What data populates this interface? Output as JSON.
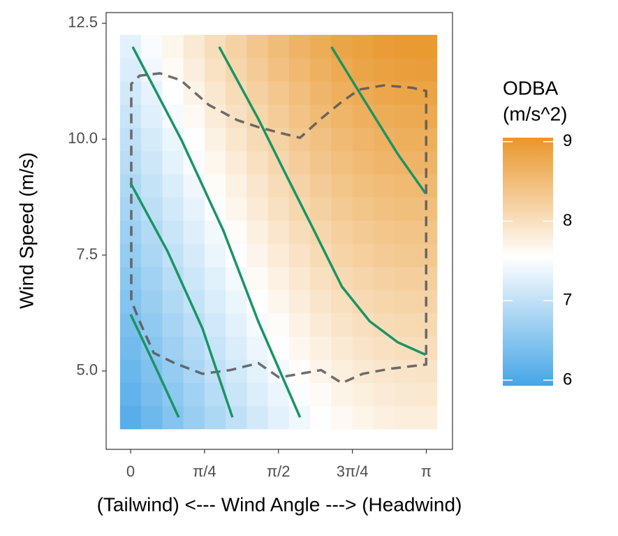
{
  "chart_data": {
    "type": "heatmap",
    "x_label": "(Tailwind)  <---  Wind Angle  --->  (Headwind)",
    "y_label": "Wind Speed (m/s)",
    "legend_title": [
      "ODBA",
      "(m/s^2)"
    ],
    "xlim": [
      -0.26,
      3.42
    ],
    "ylim": [
      3.31,
      12.73
    ],
    "xticks": [
      0,
      {
        "value": 0.7854,
        "label": "π/4"
      },
      {
        "value": 1.5708,
        "label": "π/2"
      },
      {
        "value": 2.3562,
        "label": "3π/4"
      },
      {
        "value": 3.1416,
        "label": "π"
      }
    ],
    "yticks": [
      {
        "value": 5,
        "label": "5.0"
      },
      7.5,
      {
        "value": 10,
        "label": "10.0"
      },
      12.5
    ],
    "x": [
      0,
      0.2244,
      0.4488,
      0.6732,
      0.8976,
      1.122,
      1.3464,
      1.5708,
      1.7952,
      2.0196,
      2.244,
      2.4684,
      2.6928,
      2.9172,
      3.1416
    ],
    "y": [
      4,
      4.5,
      5,
      5.5,
      6,
      6.5,
      7,
      7.5,
      8,
      8.5,
      9,
      9.5,
      10,
      10.5,
      11,
      11.5,
      12
    ],
    "z": [
      [
        6.1,
        6.29,
        6.48,
        6.66,
        6.84,
        7.0,
        7.16,
        7.3,
        7.43,
        7.54,
        7.63,
        7.7,
        7.76,
        7.79,
        7.8
      ],
      [
        6.18,
        6.37,
        6.56,
        6.74,
        6.92,
        7.08,
        7.24,
        7.38,
        7.51,
        7.62,
        7.71,
        7.78,
        7.84,
        7.87,
        7.88
      ],
      [
        6.25,
        6.44,
        6.63,
        6.81,
        6.99,
        7.15,
        7.31,
        7.45,
        7.58,
        7.69,
        7.78,
        7.85,
        7.91,
        7.94,
        7.95
      ],
      [
        6.33,
        6.52,
        6.71,
        6.89,
        7.07,
        7.23,
        7.39,
        7.53,
        7.66,
        7.77,
        7.86,
        7.93,
        7.99,
        8.02,
        8.03
      ],
      [
        6.4,
        6.59,
        6.78,
        6.96,
        7.14,
        7.3,
        7.46,
        7.6,
        7.73,
        7.84,
        7.93,
        8.0,
        8.06,
        8.09,
        8.1
      ],
      [
        6.48,
        6.67,
        6.86,
        7.04,
        7.22,
        7.38,
        7.54,
        7.68,
        7.81,
        7.92,
        8.01,
        8.08,
        8.14,
        8.17,
        8.18
      ],
      [
        6.55,
        6.74,
        6.93,
        7.11,
        7.29,
        7.45,
        7.61,
        7.75,
        7.88,
        7.99,
        8.08,
        8.15,
        8.21,
        8.24,
        8.25
      ],
      [
        6.63,
        6.82,
        7.01,
        7.19,
        7.37,
        7.53,
        7.69,
        7.83,
        7.96,
        8.07,
        8.16,
        8.23,
        8.29,
        8.32,
        8.33
      ],
      [
        6.7,
        6.89,
        7.08,
        7.26,
        7.44,
        7.6,
        7.76,
        7.9,
        8.03,
        8.14,
        8.23,
        8.3,
        8.36,
        8.39,
        8.4
      ],
      [
        6.78,
        6.97,
        7.16,
        7.34,
        7.52,
        7.68,
        7.84,
        7.98,
        8.11,
        8.22,
        8.31,
        8.38,
        8.44,
        8.47,
        8.48
      ],
      [
        6.85,
        7.04,
        7.23,
        7.41,
        7.59,
        7.75,
        7.91,
        8.05,
        8.18,
        8.29,
        8.38,
        8.45,
        8.51,
        8.54,
        8.55
      ],
      [
        6.93,
        7.12,
        7.31,
        7.49,
        7.67,
        7.83,
        7.99,
        8.13,
        8.26,
        8.37,
        8.46,
        8.53,
        8.59,
        8.62,
        8.63
      ],
      [
        7.0,
        7.19,
        7.38,
        7.56,
        7.74,
        7.9,
        8.06,
        8.2,
        8.33,
        8.44,
        8.53,
        8.6,
        8.66,
        8.69,
        8.7
      ],
      [
        7.08,
        7.27,
        7.46,
        7.64,
        7.82,
        7.98,
        8.14,
        8.28,
        8.41,
        8.52,
        8.61,
        8.68,
        8.74,
        8.77,
        8.78
      ],
      [
        7.15,
        7.34,
        7.53,
        7.71,
        7.89,
        8.05,
        8.21,
        8.35,
        8.48,
        8.59,
        8.68,
        8.75,
        8.81,
        8.84,
        8.85
      ],
      [
        7.23,
        7.42,
        7.61,
        7.79,
        7.97,
        8.13,
        8.29,
        8.43,
        8.56,
        8.67,
        8.76,
        8.83,
        8.89,
        8.92,
        8.93
      ],
      [
        7.3,
        7.49,
        7.68,
        7.86,
        8.04,
        8.2,
        8.36,
        8.5,
        8.63,
        8.74,
        8.83,
        8.9,
        8.96,
        8.99,
        9.0
      ]
    ],
    "color_scale": {
      "colors": [
        "#45a5e6",
        "#ffffff",
        "#e8962a"
      ],
      "stops": [
        5.93,
        7.55,
        9.05
      ]
    },
    "colorbar_ticks": [
      6,
      7,
      8,
      9
    ],
    "lines": [
      {
        "color": "#1a9464",
        "x": [
          0,
          0.245,
          0.511
        ],
        "y": [
          6.22,
          5.17,
          4.0
        ]
      },
      {
        "color": "#1a9464",
        "x": [
          0,
          0.393,
          0.763,
          1.082
        ],
        "y": [
          9.05,
          7.58,
          5.92,
          4.0
        ]
      },
      {
        "color": "#1a9464",
        "x": [
          0.022,
          0.541,
          0.985,
          1.356,
          1.8
        ],
        "y": [
          11.99,
          9.98,
          8.03,
          6.07,
          4.0
        ]
      },
      {
        "color": "#1a9464",
        "x": [
          0.941,
          1.356,
          1.652,
          1.949,
          2.245,
          2.541,
          2.838,
          3.134
        ],
        "y": [
          11.99,
          10.44,
          9.23,
          8.03,
          6.82,
          6.07,
          5.62,
          5.35
        ]
      },
      {
        "color": "#1a9464",
        "x": [
          2.134,
          2.467,
          2.838,
          3.134
        ],
        "y": [
          11.99,
          10.89,
          9.68,
          8.83
        ]
      }
    ],
    "boundary": {
      "color": "#555555",
      "dash": true,
      "x": [
        3.14,
        3.14,
        2.986,
        2.69,
        2.43,
        2.245,
        2.023,
        1.8,
        1.578,
        1.356,
        1.134,
        0.83,
        0.534,
        0.311,
        0.096,
        0.007,
        0.007,
        0.096,
        0.245,
        0.467,
        0.763,
        1.06,
        1.356,
        1.578,
        1.8,
        2.023,
        2.245,
        2.467,
        2.764,
        3.14,
        3.14
      ],
      "y": [
        5.35,
        11.04,
        11.11,
        11.16,
        11.07,
        10.81,
        10.44,
        10.03,
        10.14,
        10.26,
        10.41,
        10.74,
        11.27,
        11.42,
        11.37,
        11.19,
        6.52,
        6.07,
        5.39,
        5.17,
        4.94,
        5.02,
        5.17,
        4.86,
        4.94,
        5.02,
        4.74,
        4.94,
        5.05,
        5.14,
        5.35
      ]
    }
  }
}
